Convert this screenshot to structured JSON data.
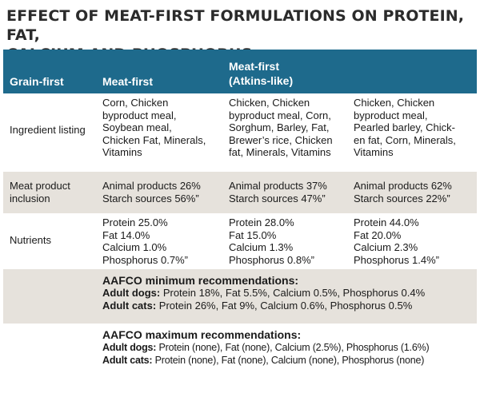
{
  "title": {
    "line1": "EFFECT OF MEAT-FIRST FORMULATIONS ON PROTEIN, FAT,",
    "line2": "CALCIUM AND PHOSPHORUS"
  },
  "header": {
    "col1": "Grain-first",
    "col2": "Meat-first",
    "col3_line1": "Meat-first",
    "col3_line2": "(Atkins-like)"
  },
  "rows": {
    "ingredients": {
      "label": "Ingredient listing",
      "c1": "Corn, Chicken\nbyproduct meal,\nSoybean meal,\nChicken Fat, Minerals,\nVitamins",
      "c2": "Chicken, Chicken\nbyproduct meal, Corn,\nSorghum, Barley, Fat,\nBrewer’s rice, Chicken\nfat, Minerals, Vitamins",
      "c3": "Chicken, Chicken\nbyproduct meal,\nPearled barley, Chick-\nen fat, Corn, Minerals,\nVitamins"
    },
    "meat": {
      "label_line1": "Meat product",
      "label_line2": "inclusion",
      "c1": "Animal products 26%\nStarch sources 56%”",
      "c2": "Animal products 37%\nStarch sources 47%”",
      "c3": "Animal products 62%\nStarch sources 22%”"
    },
    "nutrients": {
      "label": "Nutrients",
      "c1": "Protein 25.0%\nFat 14.0%\nCalcium 1.0%\nPhosphorus 0.7%”",
      "c2": "Protein 28.0%\nFat 15.0%\nCalcium 1.3%\nPhosphorus 0.8%”",
      "c3": "Protein 44.0%\nFat 20.0%\nCalcium 2.3%\nPhosphorus 1.4%”"
    }
  },
  "aafco_min": {
    "title": "AAFCO minimum recommendations:",
    "dogs_label": "Adult dogs:",
    "dogs_values": " Protein 18%, Fat 5.5%, Calcium 0.5%, Phosphorus 0.4%",
    "cats_label": "Adult cats:",
    "cats_values": " Protein 26%, Fat 9%, Calcium 0.6%, Phosphorus 0.5%"
  },
  "aafco_max": {
    "title": "AAFCO maximum recommendations:",
    "dogs_label": "Adult dogs:",
    "dogs_values": " Protein (none), Fat (none), Calcium (2.5%), Phosphorus (1.6%)",
    "cats_label": "Adult cats:",
    "cats_values": " Protein (none), Fat (none), Calcium (none), Phosphorus (none)"
  }
}
